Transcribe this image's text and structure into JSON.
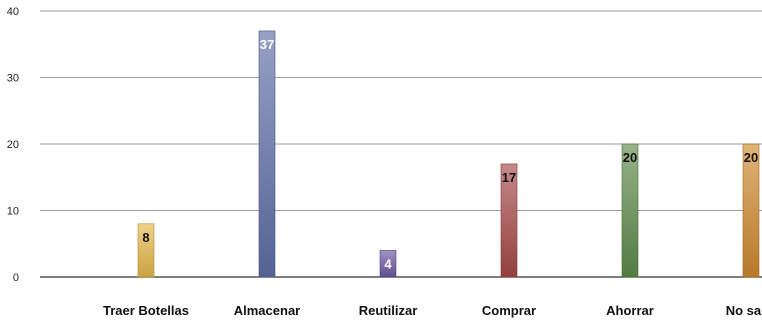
{
  "chart_data": {
    "type": "bar",
    "categories": [
      "Traer Botellas",
      "Almacenar",
      "Reutilizar",
      "Comprar",
      "Ahorrar",
      "No sabe"
    ],
    "values": [
      8,
      37,
      4,
      17,
      20,
      20
    ],
    "ylim": [
      0,
      40
    ],
    "yticks": [
      0,
      10,
      20,
      30,
      40
    ],
    "grid": true,
    "legend": "none",
    "title": "",
    "xlabel": "",
    "ylabel": "",
    "colors": [
      "#e6b84a",
      "#5f6fa8",
      "#6b5aa3",
      "#a64a48",
      "#5e8c4a",
      "#d08a2e"
    ],
    "label_colors": [
      "#111111",
      "#ffffff",
      "#ffffff",
      "#111111",
      "#111111",
      "#111111"
    ]
  }
}
